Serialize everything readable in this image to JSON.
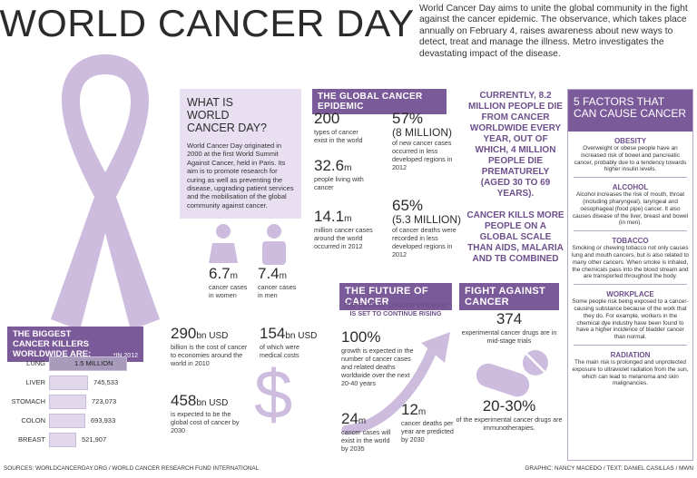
{
  "title": "WORLD CANCER DAY",
  "intro": "World Cancer Day aims to unite the global community in the fight against the cancer epidemic. The observance, which takes place annually on February 4, raises awareness about new ways to detect, treat and manage the illness. Metro investigates the devastating impact of the disease.",
  "what_is": {
    "heading": "WHAT IS WORLD CANCER DAY?",
    "text": "World Cancer Day originated in 2000 at the first World Summit Against Cancer, held in Paris. Its aim is to promote research for curing as well as preventing the disease, upgrading patient services and the mobilisation of the global community against cancer."
  },
  "epidemic": {
    "heading": "THE GLOBAL CANCER EPIDEMIC",
    "s1_num": "200",
    "s1_text": "types of cancer exist in the world",
    "s2_num": "57%",
    "s2_sub": "(8 MILLION)",
    "s2_text": "of new cancer cases occurred in less developed regions in 2012",
    "s3_num": "32.6",
    "s3_unit": "m",
    "s3_text": "people living with cancer",
    "s4_num": "14.1",
    "s4_unit": "m",
    "s4_text": "million cancer cases around the world occurred in 2012",
    "s5_num": "65%",
    "s5_sub": "(5.3 MILLION)",
    "s5_text": "of cancer deaths were recorded in less developed regions in 2012"
  },
  "deaths": {
    "text1": "CURRENTLY, 8.2 MILLION PEOPLE DIE FROM CANCER WORLDWIDE EVERY YEAR, OUT OF WHICH, 4 MILLION PEOPLE DIE PREMATURELY (AGED 30 TO 69 YEARS).",
    "text2": "CANCER KILLS MORE PEOPLE ON A GLOBAL SCALE THAN AIDS, MALARIA AND TB COMBINED"
  },
  "factors": {
    "heading": "5 FACTORS THAT CAN CAUSE CANCER",
    "items": [
      {
        "title": "OBESITY",
        "text": "Overweight or obese people have an increased risk of bowel and pancreatic cancer, probably due to a tendency towards higher insulin levels."
      },
      {
        "title": "ALCOHOL",
        "text": "Alcohol increases the risk of mouth, throat (including pharyngeal), laryngeal and oesophageal (food pipe) cancer. It also causes disease of the liver, breast and bowel (in men)."
      },
      {
        "title": "TOBACCO",
        "text": "Smoking or chewing tobacco not only causes lung and mouth cancers, but is also related to many other cancers. When smoke is inhaled, the chemicals pass into the blood stream and are transported throughout the body."
      },
      {
        "title": "WORKPLACE",
        "text": "Some people risk being exposed to a cancer-causing substance because of the work that they do. For example, workers in the chemical dye industry have been found to have a higher incidence of bladder cancer than normal."
      },
      {
        "title": "RADIATION",
        "text": "The main risk is prolonged and unprotected exposure to ultraviolet radiation from the sun, which can lead to melanoma and skin malignancies."
      }
    ]
  },
  "gender": {
    "women_num": "6.7",
    "women_unit": "m",
    "women_text": "cancer cases in women",
    "men_num": "7.4",
    "men_unit": "m",
    "men_text": "cancer cases in men"
  },
  "killers": {
    "heading": "THE BIGGEST CANCER KILLERS WORLDWIDE ARE:",
    "note": "*IN 2012",
    "items": [
      {
        "label": "LUNG",
        "value": "1.5 MILLION",
        "num": 1500000
      },
      {
        "label": "LIVER",
        "value": "745,533",
        "num": 745533
      },
      {
        "label": "STOMACH",
        "value": "723,073",
        "num": 723073
      },
      {
        "label": "COLON",
        "value": "693,933",
        "num": 693933
      },
      {
        "label": "BREAST",
        "value": "521,907",
        "num": 521907
      }
    ]
  },
  "costs": {
    "c1_num": "290",
    "c1_unit": "bn USD",
    "c1_text": "billion is the cost of cancer to economies around the world in 2010",
    "c2_num": "154",
    "c2_unit": "bn USD",
    "c2_text": "of which were medical costs",
    "c3_num": "458",
    "c3_unit": "bn USD",
    "c3_text": "is expected to be the global cost of cancer by 2030"
  },
  "future": {
    "heading": "THE FUTURE OF CANCER",
    "sub": "THE GLOBAL CANCER EPIDEMIC IS SET TO CONTINUE RISING",
    "f1_num": "100%",
    "f1_text": "growth is expected in the number of cancer cases and related deaths worldwide over the next 20-40 years",
    "f2_num": "24",
    "f2_unit": "m",
    "f2_text": "cancer cases will exist in the world by 2035",
    "f3_num": "12",
    "f3_unit": "m",
    "f3_text": "cancer deaths per year are predicted by 2030"
  },
  "fight": {
    "heading": "FIGHT AGAINST CANCER",
    "g1_num": "374",
    "g1_text": "experimental cancer drugs are in mid-stage trials",
    "g2_num": "20-30%",
    "g2_text": "of the experimental cancer drugs are immunotherapies."
  },
  "footer": {
    "sources": "SOURCES: WORLDCANCERDAY.ORG / WORLD CANCER RESEARCH FUND INTERNATIONAL",
    "credits": "GRAPHIC: NANCY MACEDO / TEXT: DANIEL CASILLAS / MWN"
  },
  "colors": {
    "accent": "#7b5a9a",
    "light": "#e8dff0",
    "ribbon": "#cdbcde"
  }
}
